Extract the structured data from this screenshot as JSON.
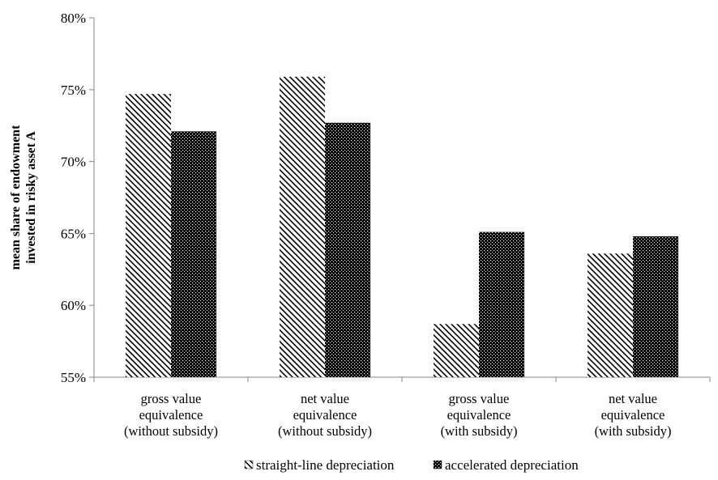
{
  "chart_data": {
    "type": "bar",
    "ylabel_lines": [
      "mean share of endowment",
      "invested in risky asset A"
    ],
    "categories": [
      [
        "gross value",
        "equivalence",
        "(without subsidy)"
      ],
      [
        "net value",
        "equivalence",
        "(without subsidy)"
      ],
      [
        "gross value",
        "equivalence",
        "(with subsidy)"
      ],
      [
        "net value",
        "equivalence",
        "(with subsidy)"
      ]
    ],
    "series": [
      {
        "name": "straight-line depreciation",
        "pattern": "hatch",
        "values": [
          74.7,
          75.9,
          58.7,
          63.6
        ]
      },
      {
        "name": "accelerated depreciation",
        "pattern": "dots",
        "values": [
          72.1,
          72.7,
          65.1,
          64.8
        ]
      }
    ],
    "ylim": [
      55,
      80
    ],
    "yticks": [
      55,
      60,
      65,
      70,
      75,
      80
    ],
    "ytick_labels": [
      "55%",
      "60%",
      "65%",
      "70%",
      "75%",
      "80%"
    ],
    "grid": false,
    "legend_position": "bottom",
    "colors": {
      "axis": "#868686",
      "hatch_fg": "#000000",
      "dots_bg": "#000000",
      "dots_fg": "#ffffff"
    }
  }
}
